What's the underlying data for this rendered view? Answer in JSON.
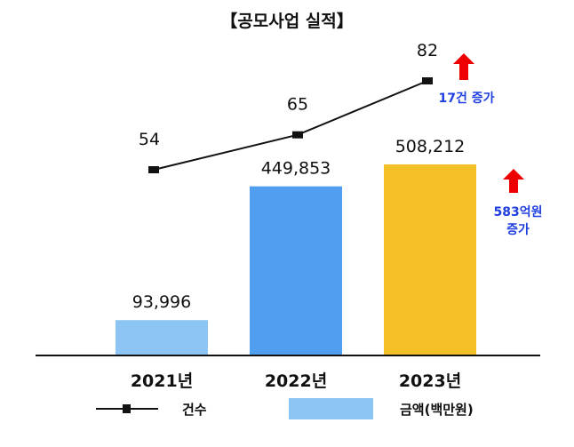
{
  "chart_data": {
    "type": "bar",
    "title": "【공모사업 실적】",
    "categories": [
      "2021년",
      "2022년",
      "2023년"
    ],
    "series": [
      {
        "name": "금액(백만원)",
        "type": "bar",
        "values": [
          93996,
          449853,
          508212
        ],
        "value_labels": [
          "93,996",
          "449,853",
          "508,212"
        ]
      },
      {
        "name": "건수",
        "type": "line",
        "values": [
          54,
          65,
          82
        ],
        "value_labels": [
          "54",
          "65",
          "82"
        ]
      }
    ],
    "annotations": [
      {
        "text": "17건 증가",
        "series": "건수"
      },
      {
        "text": "583억원 증가",
        "lines": [
          "583억원",
          "증가"
        ],
        "series": "금액(백만원)"
      }
    ],
    "legend": {
      "position": "bottom",
      "items": [
        "건수",
        "금액(백만원)"
      ]
    },
    "colors": {
      "bars": [
        "#8cc5f3",
        "#4f9ef0",
        "#f4c027"
      ],
      "line": "#111111",
      "arrow": "#ee0000",
      "note": "#1f3fe0"
    }
  }
}
